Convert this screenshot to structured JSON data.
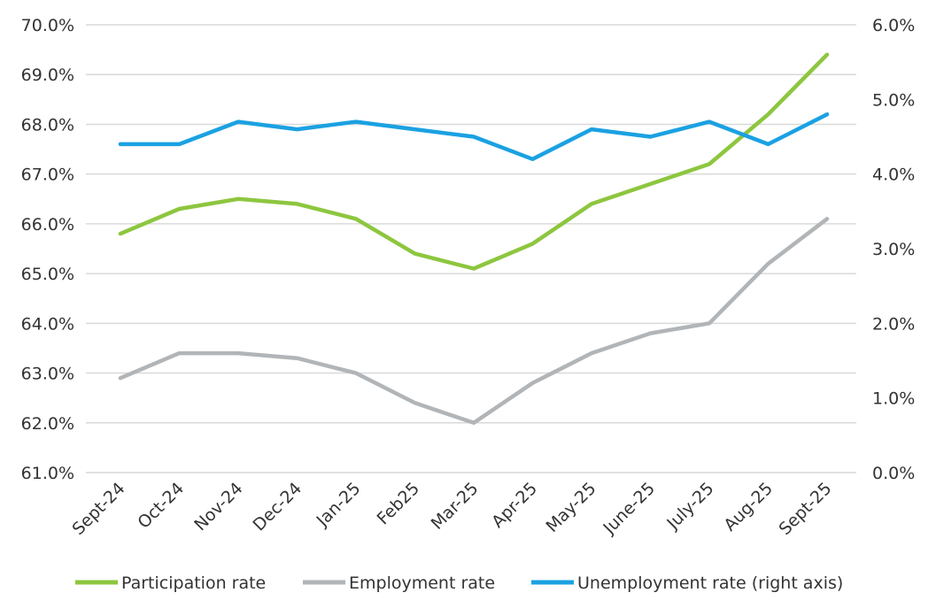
{
  "chart_data": {
    "type": "line",
    "title": "",
    "categories": [
      "Sept-24",
      "Oct-24",
      "Nov-24",
      "Dec-24",
      "Jan-25",
      "Feb25",
      "Mar-25",
      "Apr-25",
      "May-25",
      "June-25",
      "July-25",
      "Aug-25",
      "Sept-25"
    ],
    "left_axis": {
      "ylim": [
        61.0,
        70.0
      ],
      "ticks": [
        "61.0%",
        "62.0%",
        "63.0%",
        "64.0%",
        "65.0%",
        "66.0%",
        "67.0%",
        "68.0%",
        "69.0%",
        "70.0%"
      ]
    },
    "right_axis": {
      "ylim": [
        0.0,
        6.0
      ],
      "ticks": [
        "0.0%",
        "1.0%",
        "2.0%",
        "3.0%",
        "4.0%",
        "5.0%",
        "6.0%"
      ]
    },
    "grid": true,
    "legend_position": "bottom",
    "series": [
      {
        "name": "Participation rate",
        "axis": "left",
        "color": "#8dc63f",
        "values": [
          65.8,
          66.3,
          66.5,
          66.4,
          66.1,
          65.4,
          65.1,
          65.6,
          66.4,
          66.8,
          67.2,
          68.2,
          69.4
        ]
      },
      {
        "name": "Employment rate",
        "axis": "left",
        "color": "#b1b5b8",
        "values": [
          62.9,
          63.4,
          63.4,
          63.3,
          63.0,
          62.4,
          62.0,
          62.8,
          63.4,
          63.8,
          64.0,
          65.2,
          66.1
        ]
      },
      {
        "name": "Unemployment rate (right axis)",
        "axis": "right",
        "color": "#1ba1e2",
        "values": [
          4.4,
          4.4,
          4.7,
          4.6,
          4.7,
          4.6,
          4.5,
          4.2,
          4.6,
          4.5,
          4.7,
          4.4,
          4.8
        ]
      }
    ]
  }
}
